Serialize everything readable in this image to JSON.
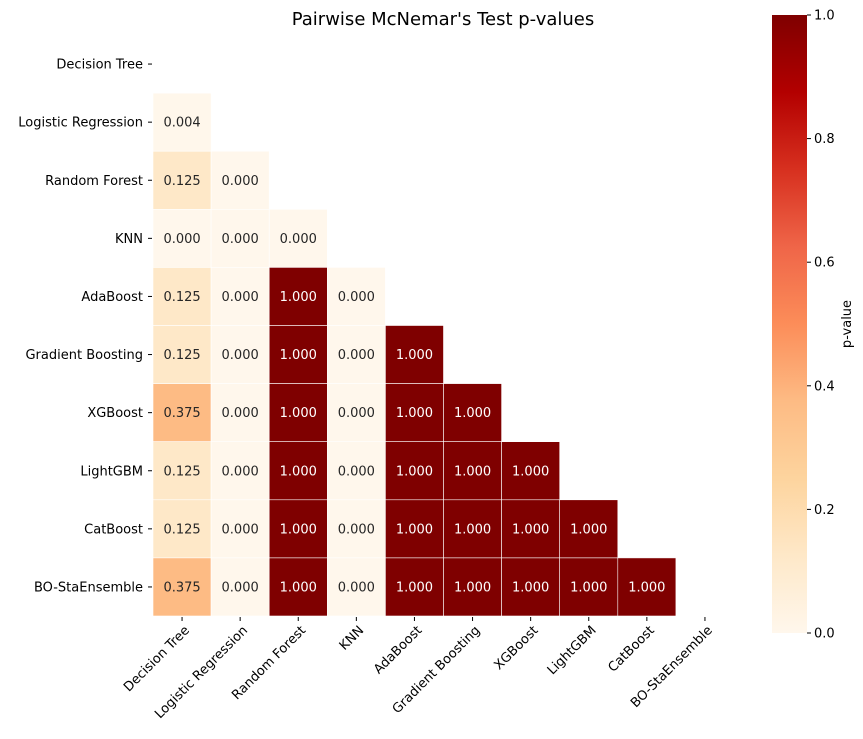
{
  "chart_data": {
    "type": "heatmap",
    "title": "Pairwise McNemar's Test p-values",
    "row_labels": [
      "Decision Tree",
      "Logistic Regression",
      "Random Forest",
      "KNN",
      "AdaBoost",
      "Gradient Boosting",
      "XGBoost",
      "LightGBM",
      "CatBoost",
      "BO-StaEnsemble"
    ],
    "col_labels": [
      "Decision Tree",
      "Logistic Regression",
      "Random Forest",
      "KNN",
      "AdaBoost",
      "Gradient Boosting",
      "XGBoost",
      "LightGBM",
      "CatBoost",
      "BO-StaEnsemble"
    ],
    "values": [
      [],
      [
        0.004
      ],
      [
        0.125,
        0.0
      ],
      [
        0.0,
        0.0,
        0.0
      ],
      [
        0.125,
        0.0,
        1.0,
        0.0
      ],
      [
        0.125,
        0.0,
        1.0,
        0.0,
        1.0
      ],
      [
        0.375,
        0.0,
        1.0,
        0.0,
        1.0,
        1.0
      ],
      [
        0.125,
        0.0,
        1.0,
        0.0,
        1.0,
        1.0,
        1.0
      ],
      [
        0.125,
        0.0,
        1.0,
        0.0,
        1.0,
        1.0,
        1.0,
        1.0
      ],
      [
        0.375,
        0.0,
        1.0,
        0.0,
        1.0,
        1.0,
        1.0,
        1.0,
        1.0
      ]
    ],
    "mask": "lower-triangle (strict)",
    "value_format": "3 decimals",
    "colormap": "OrRd",
    "colorbar": {
      "label": "p-value",
      "range": [
        0.0,
        1.0
      ],
      "ticks": [
        "0.0",
        "0.2",
        "0.4",
        "0.6",
        "0.8",
        "1.0"
      ]
    },
    "grid_line_color": "#ffffff"
  }
}
